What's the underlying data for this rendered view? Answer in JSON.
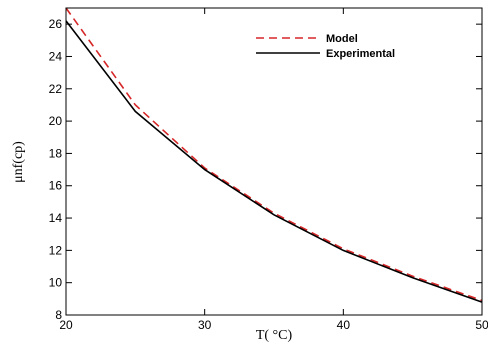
{
  "chart_data": {
    "type": "line",
    "x": [
      20,
      25,
      30,
      35,
      40,
      45,
      50
    ],
    "series": [
      {
        "name": "Model",
        "values": [
          27.0,
          21.0,
          17.1,
          14.3,
          12.1,
          10.4,
          8.9
        ],
        "color": "#d62728",
        "style": "dashed"
      },
      {
        "name": "Experimental",
        "values": [
          26.2,
          20.6,
          17.0,
          14.2,
          12.0,
          10.3,
          8.8
        ],
        "color": "#000000",
        "style": "solid"
      }
    ],
    "xlabel": "T( °C)",
    "ylabel": "μnf(cp)",
    "xlim": [
      20,
      50
    ],
    "ylim": [
      8,
      27
    ],
    "xticks": [
      20,
      30,
      40,
      50
    ],
    "yticks": [
      8,
      10,
      12,
      14,
      16,
      18,
      20,
      22,
      24,
      26
    ],
    "grid": false,
    "legend_position": "top-right"
  }
}
